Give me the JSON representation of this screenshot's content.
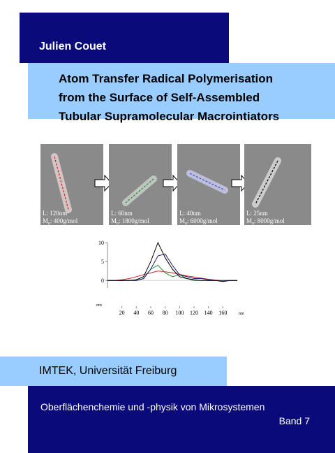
{
  "author": "Julien Couet",
  "title": {
    "lines": [
      "Atom Transfer Radical Polymerisation",
      "from the Surface of Self-Assembled",
      "Tubular Supramolecular Macrointiators"
    ]
  },
  "panels": [
    {
      "length": "L: 120nm",
      "mass": "M",
      "mass_sub": "n",
      "mass_rest": ": 400g/mol"
    },
    {
      "length": "L: 60nm",
      "mass": "M",
      "mass_sub": "n",
      "mass_rest": ": 1800g/mol"
    },
    {
      "length": "L: 40nm",
      "mass": "M",
      "mass_sub": "n",
      "mass_rest": ": 6000g/mol"
    },
    {
      "length": "L: 25nm",
      "mass": "M",
      "mass_sub": "n",
      "mass_rest": ": 8000g/mol"
    }
  ],
  "plot": {
    "type": "line",
    "x_unit": "nm",
    "y_unit": "nm",
    "xlim": [
      0,
      180
    ],
    "ylim": [
      -2,
      10
    ],
    "xticks": [
      20,
      40,
      60,
      80,
      100,
      120,
      140,
      160
    ],
    "yticks": [
      0,
      5,
      10
    ],
    "x": [
      0,
      10,
      20,
      30,
      40,
      50,
      60,
      70,
      80,
      90,
      100,
      110,
      120,
      130,
      140,
      150,
      160,
      170,
      180
    ],
    "series": [
      {
        "color": "#d02020",
        "values": [
          0,
          0,
          0.2,
          0.5,
          1,
          1.5,
          2,
          2.5,
          2.3,
          2,
          1.6,
          1.2,
          0.9,
          0.6,
          0.3,
          0.1,
          0,
          0,
          0
        ]
      },
      {
        "color": "#2a8a3a",
        "values": [
          0,
          0,
          0,
          0,
          0,
          0.5,
          3,
          4,
          2,
          1,
          1.5,
          0.5,
          0,
          0,
          0,
          0,
          0,
          0,
          0
        ]
      },
      {
        "color": "#1a1a80",
        "values": [
          0,
          0,
          0,
          0,
          0,
          0.5,
          3,
          6.5,
          7,
          4,
          1.5,
          1,
          0.5,
          0.5,
          0.2,
          0,
          0,
          0,
          0
        ]
      },
      {
        "color": "#000000",
        "values": [
          0,
          0,
          0,
          0,
          0.2,
          1,
          5,
          10,
          6,
          3,
          1,
          0.5,
          0.2,
          0,
          0,
          0,
          -0.3,
          0,
          0
        ]
      }
    ]
  },
  "institution": "IMTEK, Universität Freiburg",
  "series_title": "Oberflächenchemie und -physik von Mikrosystemen",
  "volume": "Band 7"
}
